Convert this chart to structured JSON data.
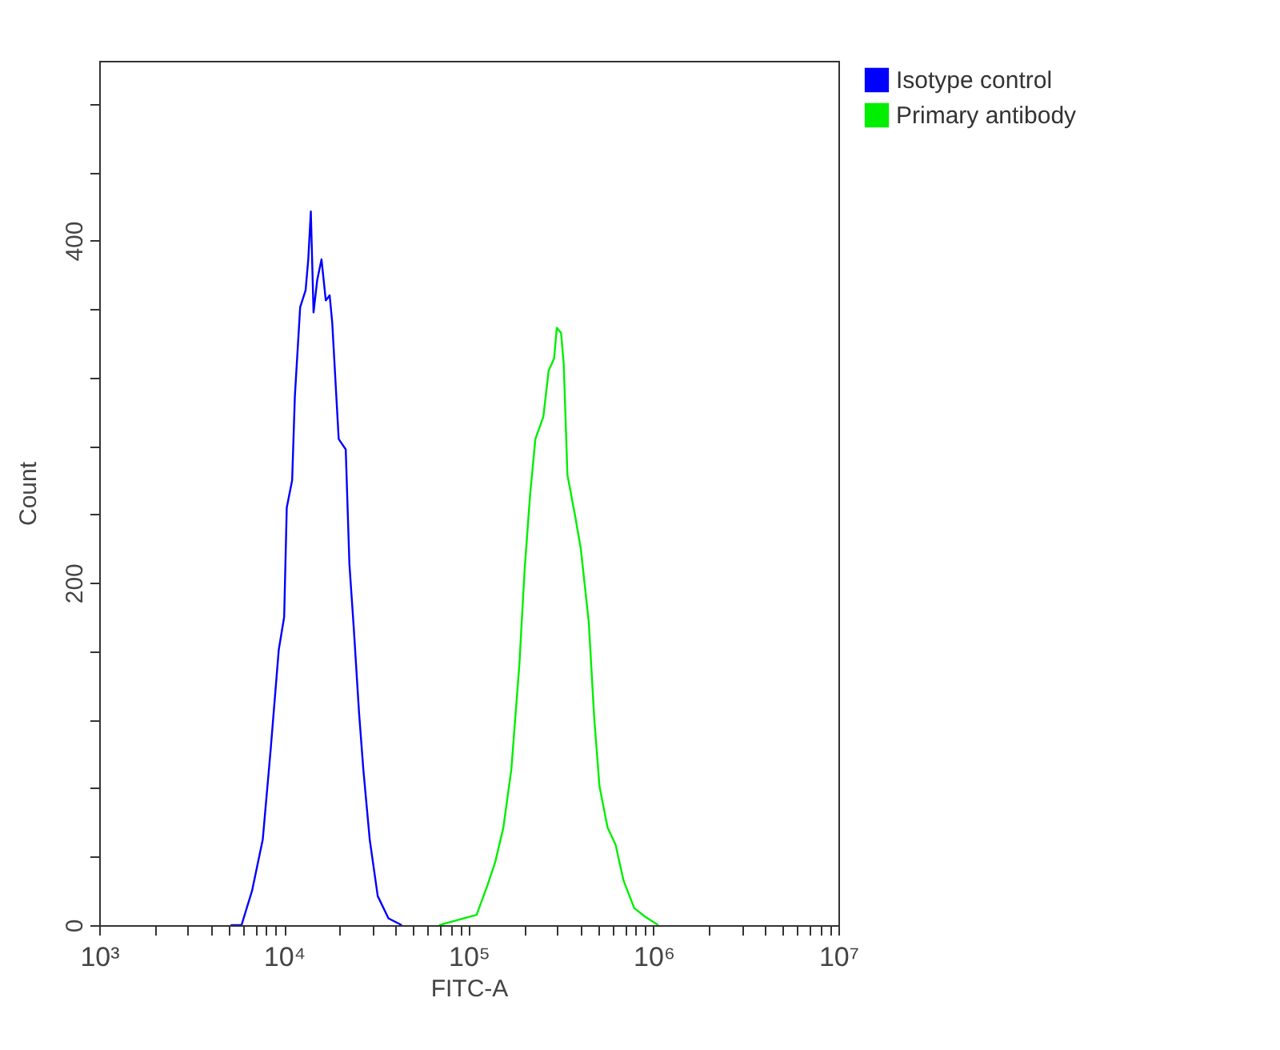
{
  "chart_data": {
    "type": "line",
    "xlabel": "FITC-A",
    "ylabel": "Count",
    "log": "x",
    "grid": false,
    "legend": "top right",
    "xlim": [
      1000,
      10000000
    ],
    "ylim": [
      0,
      505
    ],
    "xticks": [
      {
        "value": 1000,
        "label": "10³"
      },
      {
        "value": 2000,
        "label": null
      },
      {
        "value": 3000,
        "label": null
      },
      {
        "value": 4000,
        "label": null
      },
      {
        "value": 5000,
        "label": null
      },
      {
        "value": 6000,
        "label": null
      },
      {
        "value": 7000,
        "label": null
      },
      {
        "value": 8000,
        "label": null
      },
      {
        "value": 9000,
        "label": null
      },
      {
        "value": 10000,
        "label": "10⁴"
      },
      {
        "value": 20000,
        "label": null
      },
      {
        "value": 30000,
        "label": null
      },
      {
        "value": 40000,
        "label": null
      },
      {
        "value": 50000,
        "label": null
      },
      {
        "value": 60000,
        "label": null
      },
      {
        "value": 70000,
        "label": null
      },
      {
        "value": 80000,
        "label": null
      },
      {
        "value": 90000,
        "label": null
      },
      {
        "value": 100000,
        "label": "10⁵"
      },
      {
        "value": 200000,
        "label": null
      },
      {
        "value": 300000,
        "label": null
      },
      {
        "value": 400000,
        "label": null
      },
      {
        "value": 500000,
        "label": null
      },
      {
        "value": 600000,
        "label": null
      },
      {
        "value": 700000,
        "label": null
      },
      {
        "value": 800000,
        "label": null
      },
      {
        "value": 900000,
        "label": null
      },
      {
        "value": 1000000,
        "label": "10⁶"
      },
      {
        "value": 2000000,
        "label": null
      },
      {
        "value": 3000000,
        "label": null
      },
      {
        "value": 4000000,
        "label": null
      },
      {
        "value": 5000000,
        "label": null
      },
      {
        "value": 6000000,
        "label": null
      },
      {
        "value": 7000000,
        "label": null
      },
      {
        "value": 8000000,
        "label": null
      },
      {
        "value": 9000000,
        "label": null
      },
      {
        "value": 10000000,
        "label": "10⁷"
      }
    ],
    "yticks": [
      0,
      {
        "value": 40,
        "label": null
      },
      {
        "value": 80,
        "label": null
      },
      {
        "value": 120,
        "label": null
      },
      {
        "value": 160,
        "label": null
      },
      200,
      {
        "value": 240,
        "label": null
      },
      {
        "value": 280,
        "label": null
      },
      {
        "value": 320,
        "label": null
      },
      {
        "value": 360,
        "label": null
      },
      400,
      {
        "value": 440,
        "label": null
      },
      {
        "value": 480,
        "label": null
      }
    ],
    "series": [
      {
        "name": "Isotype control",
        "color": "#0000ff",
        "x": [
          5145,
          5888,
          6714,
          7674,
          8476,
          9370,
          10020,
          10350,
          11070,
          11450,
          12230,
          13090,
          13530,
          13970,
          14450,
          15130,
          15960,
          16830,
          17660,
          18240,
          19770,
          21580,
          22590,
          23840,
          25480,
          26870,
          29100,
          32150,
          36740,
          43390
        ],
        "values": [
          0,
          0,
          20,
          50,
          103,
          161,
          180,
          244,
          260,
          309,
          361,
          371,
          389,
          417,
          358,
          377,
          389,
          365,
          368,
          352,
          284,
          278,
          211,
          174,
          124,
          91,
          50,
          17,
          4,
          0
        ]
      },
      {
        "name": "Primary antibody",
        "color": "#00ee00",
        "x": [
          69050,
          110200,
          125900,
          139100,
          153800,
          169900,
          187700,
          200600,
          214500,
          229200,
          253100,
          270500,
          289500,
          299200,
          315700,
          326300,
          341800,
          377700,
          403600,
          445900,
          477100,
          509700,
          563500,
          622700,
          687900,
          785400,
          897300,
          1061000
        ],
        "values": [
          0,
          6,
          23,
          37,
          57,
          91,
          152,
          208,
          251,
          284,
          297,
          324,
          331,
          349,
          346,
          328,
          263,
          238,
          220,
          177,
          121,
          81,
          57,
          47,
          26,
          10,
          5,
          0
        ]
      }
    ]
  }
}
